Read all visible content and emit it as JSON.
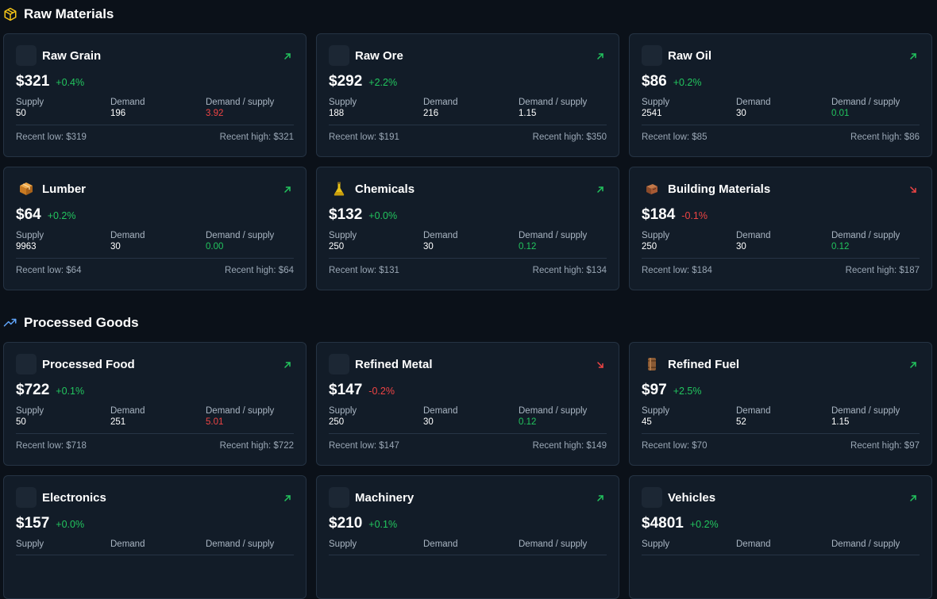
{
  "sections": [
    {
      "title": "Raw Materials",
      "icon": "box-icon",
      "cards": [
        {
          "name": "Raw Grain",
          "icon": "blank-icon",
          "price": "$321",
          "change": "+0.4%",
          "trend": "up",
          "supply": "50",
          "demand": "196",
          "ratio": "3.92",
          "ratio_status": "red",
          "low": "Recent low: $319",
          "high": "Recent high: $321"
        },
        {
          "name": "Raw Ore",
          "icon": "blank-icon",
          "price": "$292",
          "change": "+2.2%",
          "trend": "up",
          "supply": "188",
          "demand": "216",
          "ratio": "1.15",
          "ratio_status": "normal",
          "low": "Recent low: $191",
          "high": "Recent high: $350"
        },
        {
          "name": "Raw Oil",
          "icon": "blank-icon",
          "price": "$86",
          "change": "+0.2%",
          "trend": "up",
          "supply": "2541",
          "demand": "30",
          "ratio": "0.01",
          "ratio_status": "green",
          "low": "Recent low: $85",
          "high": "Recent high: $86"
        },
        {
          "name": "Lumber",
          "icon": "package-icon",
          "price": "$64",
          "change": "+0.2%",
          "trend": "up",
          "supply": "9963",
          "demand": "30",
          "ratio": "0.00",
          "ratio_status": "green",
          "low": "Recent low: $64",
          "high": "Recent high: $64"
        },
        {
          "name": "Chemicals",
          "icon": "flask-icon",
          "price": "$132",
          "change": "+0.0%",
          "trend": "up",
          "supply": "250",
          "demand": "30",
          "ratio": "0.12",
          "ratio_status": "green",
          "low": "Recent low: $131",
          "high": "Recent high: $134"
        },
        {
          "name": "Building Materials",
          "icon": "bricks-icon",
          "price": "$184",
          "change": "-0.1%",
          "trend": "down",
          "supply": "250",
          "demand": "30",
          "ratio": "0.12",
          "ratio_status": "green",
          "low": "Recent low: $184",
          "high": "Recent high: $187"
        }
      ]
    },
    {
      "title": "Processed Goods",
      "icon": "trending-up-icon",
      "cards": [
        {
          "name": "Processed Food",
          "icon": "blank-icon",
          "price": "$722",
          "change": "+0.1%",
          "trend": "up",
          "supply": "50",
          "demand": "251",
          "ratio": "5.01",
          "ratio_status": "red",
          "low": "Recent low: $718",
          "high": "Recent high: $722"
        },
        {
          "name": "Refined Metal",
          "icon": "blank-icon",
          "price": "$147",
          "change": "-0.2%",
          "trend": "down",
          "supply": "250",
          "demand": "30",
          "ratio": "0.12",
          "ratio_status": "green",
          "low": "Recent low: $147",
          "high": "Recent high: $149"
        },
        {
          "name": "Refined Fuel",
          "icon": "fuel-barrel-icon",
          "price": "$97",
          "change": "+2.5%",
          "trend": "up",
          "supply": "45",
          "demand": "52",
          "ratio": "1.15",
          "ratio_status": "normal",
          "low": "Recent low: $70",
          "high": "Recent high: $97"
        },
        {
          "name": "Electronics",
          "icon": "blank-icon",
          "price": "$157",
          "change": "+0.0%",
          "trend": "up"
        },
        {
          "name": "Machinery",
          "icon": "blank-icon",
          "price": "$210",
          "change": "+0.1%",
          "trend": "up"
        },
        {
          "name": "Vehicles",
          "icon": "blank-icon",
          "price": "$4801",
          "change": "+0.2%",
          "trend": "up"
        }
      ]
    }
  ],
  "labels": {
    "supply": "Supply",
    "demand": "Demand",
    "ratio": "Demand / supply"
  },
  "colors": {
    "background": "#0b1119",
    "card": "#121c28",
    "up": "#22c55e",
    "down": "#ef4444",
    "section_icon_raw": "#f5c518",
    "section_icon_processed": "#60a5fa"
  }
}
